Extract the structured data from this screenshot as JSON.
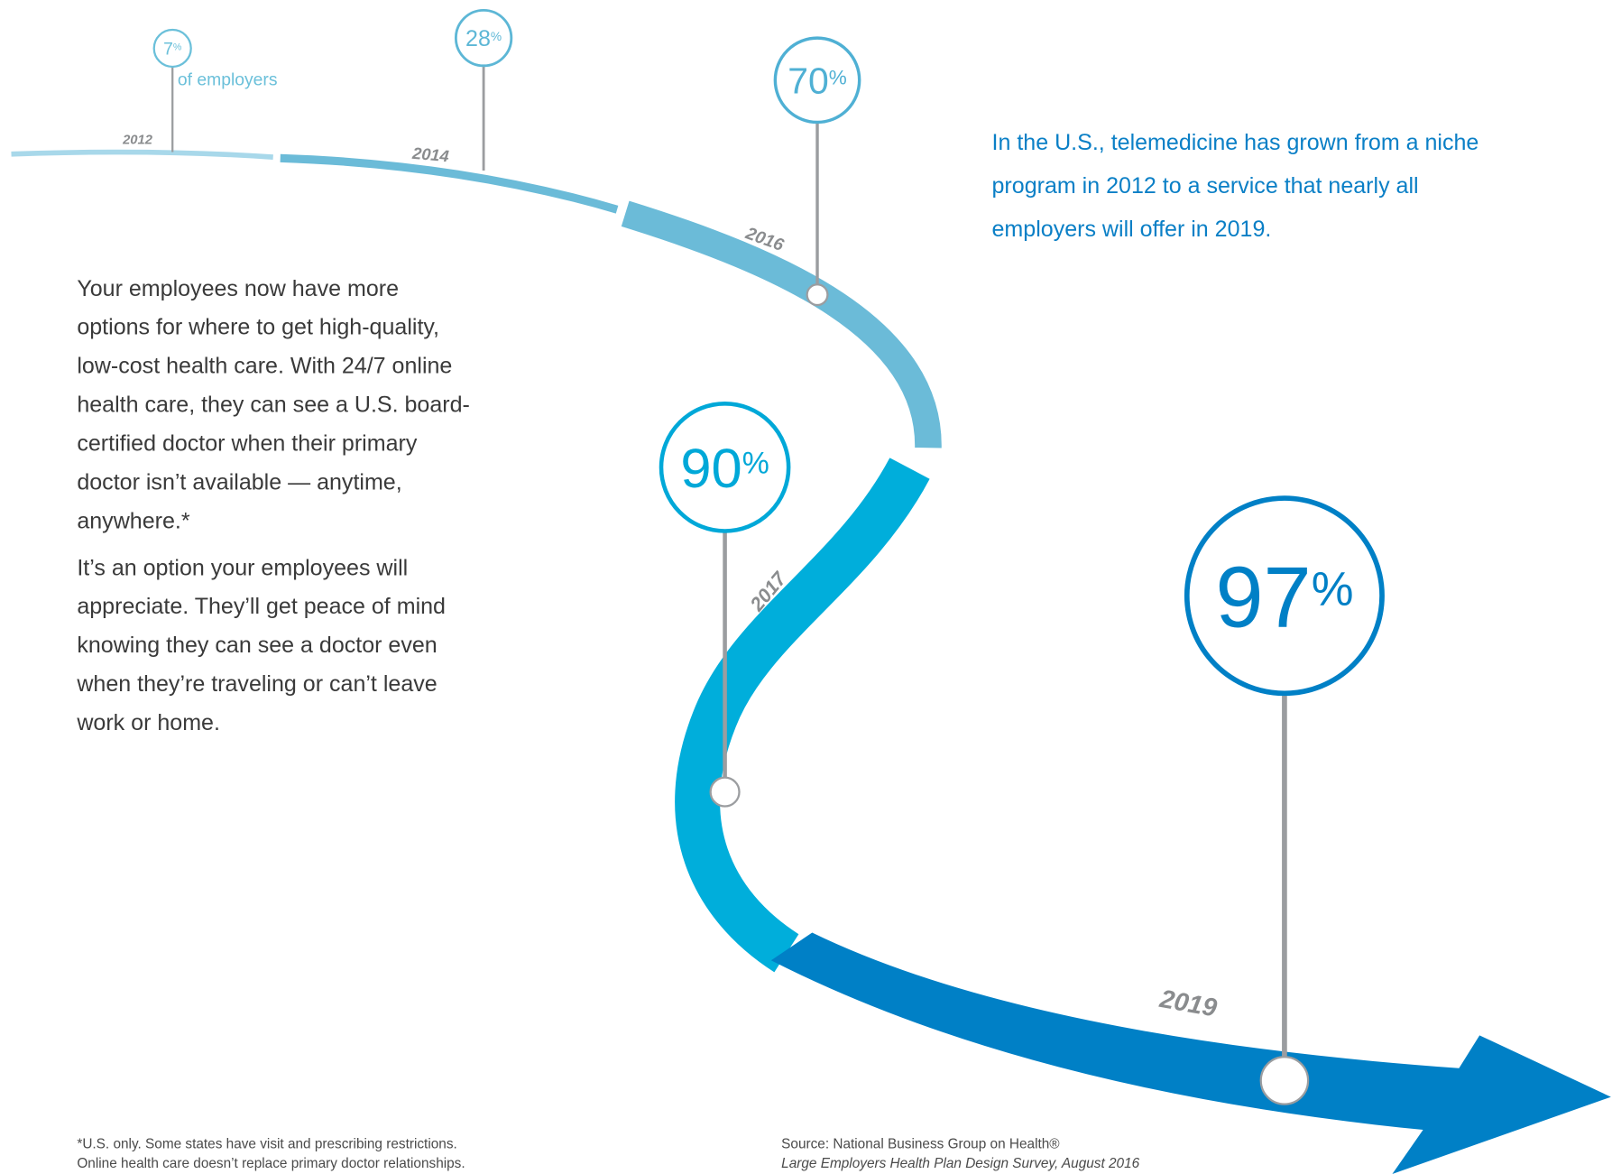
{
  "milestones": [
    {
      "year": "2012",
      "value": 7,
      "unit": "%",
      "note": "of employers"
    },
    {
      "year": "2014",
      "value": 28,
      "unit": "%"
    },
    {
      "year": "2016",
      "value": 70,
      "unit": "%"
    },
    {
      "year": "2017",
      "value": 90,
      "unit": "%"
    },
    {
      "year": "2019",
      "value": 97,
      "unit": "%"
    }
  ],
  "lead_lines": [
    "In the U.S., telemedicine has grown from a niche",
    "program in 2012 to a service that nearly all",
    "employers will offer in 2019."
  ],
  "body_paragraphs": [
    [
      "Your employees now have more",
      "options for where to get high-quality,",
      "low-cost health care. With 24/7 online",
      "health care, they can see a U.S. board-",
      "certified doctor when their primary",
      "doctor isn’t available — anytime,",
      "anywhere.*"
    ],
    [
      "It’s an option your employees will",
      "appreciate. They’ll get peace of mind",
      "knowing they can see a doctor even",
      "when they’re traveling or can’t leave",
      "work or home."
    ]
  ],
  "footnote_lines": [
    "*U.S. only. Some states have visit and prescribing restrictions.",
    "  Online health care doesn’t replace primary doctor relationships."
  ],
  "source_lines": [
    "Source: National Business Group on Health®",
    "Large Employers Health Plan Design Survey, August 2016"
  ]
}
